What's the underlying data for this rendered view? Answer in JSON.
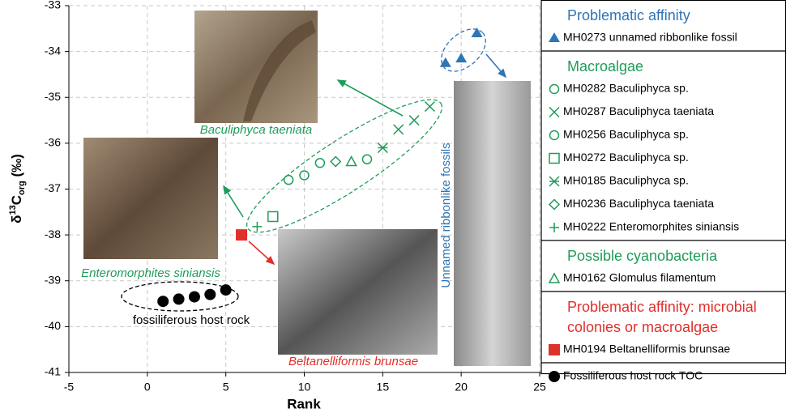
{
  "chart_data": {
    "type": "scatter",
    "xlabel": "Rank",
    "ylabel": {
      "delta": "δ",
      "sup": "13",
      "main": "C",
      "sub": "org",
      "unit": " (‰)"
    },
    "xlim": [
      -5,
      25
    ],
    "xticks": [
      -5,
      0,
      5,
      10,
      15,
      20,
      25
    ],
    "ylim": [
      -41,
      -33
    ],
    "yticks": [
      -33,
      -34,
      -35,
      -36,
      -37,
      -38,
      -39,
      -40,
      -41
    ],
    "grid": true,
    "groups": [
      {
        "title": [
          "Problematic affinity"
        ],
        "color": "#2e75b6",
        "series": [
          {
            "name": "MH0273 unnamed ribbonlike fossil",
            "color": "#2e75b6",
            "marker": "filled-triangle",
            "x": [
              19,
              20,
              21
            ],
            "values": [
              -34.25,
              -34.15,
              -33.6
            ]
          }
        ]
      },
      {
        "title": [
          "Macroalgae"
        ],
        "color": "#1f9c5a",
        "series": [
          {
            "name": "MH0282 Baculiphyca sp.",
            "color": "#1f9c5a",
            "marker": "circle",
            "x": [
              9,
              10
            ],
            "values": [
              -36.8,
              -36.7
            ]
          },
          {
            "name": "MH0287 Baculiphyca taeniata",
            "color": "#1f9c5a",
            "marker": "x",
            "x": [
              16,
              17,
              18
            ],
            "values": [
              -35.7,
              -35.5,
              -35.2
            ]
          },
          {
            "name": "MH0256 Baculiphyca sp.",
            "color": "#1f9c5a",
            "marker": "circle",
            "x": [
              11,
              14
            ],
            "values": [
              -36.43,
              -36.35
            ]
          },
          {
            "name": "MH0272 Baculiphyca sp.",
            "color": "#1f9c5a",
            "marker": "square",
            "x": [
              8
            ],
            "values": [
              -37.6
            ]
          },
          {
            "name": "MH0185 Baculiphyca sp.",
            "color": "#1f9c5a",
            "marker": "asterisk",
            "x": [
              15
            ],
            "values": [
              -36.1
            ]
          },
          {
            "name": "MH0236 Baculiphyca taeniata",
            "color": "#1f9c5a",
            "marker": "diamond",
            "x": [
              12
            ],
            "values": [
              -36.4
            ]
          },
          {
            "name": "MH0222 Enteromorphites siniansis",
            "color": "#1f9c5a",
            "marker": "plus",
            "x": [
              7
            ],
            "values": [
              -37.82
            ]
          }
        ]
      },
      {
        "title": [
          "Possible cyanobacteria"
        ],
        "color": "#1f9c5a",
        "series": [
          {
            "name": "MH0162 Glomulus filamentum",
            "color": "#1f9c5a",
            "marker": "triangle",
            "x": [
              13
            ],
            "values": [
              -36.4
            ]
          }
        ]
      },
      {
        "title": [
          "Problematic affinity: microbial",
          "colonies or macroalgae"
        ],
        "color": "#e0302a",
        "series": [
          {
            "name": "MH0194 Beltanelliformis brunsae",
            "color": "#e0302a",
            "marker": "filled-square",
            "x": [
              6
            ],
            "values": [
              -38.0
            ]
          }
        ]
      },
      {
        "series": [
          {
            "name": "Fossiliferous host rock TOC",
            "color": "#000000",
            "marker": "filled-circle",
            "x": [
              1,
              2,
              3,
              4,
              5
            ],
            "values": [
              -39.45,
              -39.4,
              -39.35,
              -39.3,
              -39.2
            ]
          }
        ]
      }
    ],
    "annotations": [
      {
        "text": "Baculiphyca taeniata",
        "color": "#1f9c5a"
      },
      {
        "text": "Enteromorphites siniansis",
        "color": "#1f9c5a"
      },
      {
        "text": "Beltanelliformis brunsae",
        "color": "#e0302a"
      },
      {
        "text": "fossiliferous host rock",
        "color": "#000000"
      },
      {
        "text": "Unnamed ribbonlike fossils",
        "color": "#2e75b6"
      }
    ]
  }
}
